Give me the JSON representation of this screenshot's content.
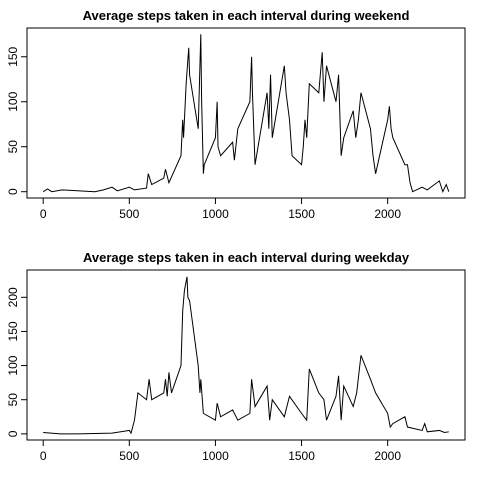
{
  "chart_data": [
    {
      "type": "line",
      "title": "Average steps taken in each interval during weekend",
      "x": [
        0,
        25,
        50,
        110,
        300,
        350,
        400,
        430,
        500,
        530,
        600,
        610,
        630,
        700,
        710,
        730,
        800,
        810,
        815,
        830,
        845,
        850,
        900,
        915,
        920,
        930,
        935,
        1000,
        1010,
        1015,
        1030,
        1100,
        1110,
        1130,
        1200,
        1210,
        1215,
        1230,
        1300,
        1310,
        1320,
        1330,
        1400,
        1410,
        1430,
        1445,
        1500,
        1510,
        1520,
        1530,
        1545,
        1600,
        1620,
        1630,
        1645,
        1700,
        1715,
        1730,
        1745,
        1800,
        1815,
        1830,
        1845,
        1900,
        1915,
        1930,
        2000,
        2010,
        2020,
        2030,
        2100,
        2115,
        2130,
        2145,
        2200,
        2230,
        2300,
        2320,
        2340,
        2355
      ],
      "series": [
        {
          "name": "weekend",
          "color": "#000000",
          "values": [
            0,
            3,
            0,
            2,
            0,
            2,
            5,
            1,
            5,
            2,
            4,
            20,
            8,
            15,
            25,
            10,
            40,
            80,
            60,
            120,
            160,
            130,
            70,
            175,
            100,
            20,
            30,
            60,
            100,
            50,
            40,
            55,
            35,
            70,
            100,
            150,
            110,
            30,
            110,
            70,
            130,
            60,
            140,
            110,
            80,
            40,
            30,
            50,
            80,
            60,
            120,
            110,
            155,
            100,
            140,
            100,
            130,
            40,
            60,
            90,
            60,
            80,
            110,
            70,
            40,
            20,
            80,
            95,
            70,
            60,
            30,
            30,
            10,
            0,
            5,
            2,
            12,
            0,
            8,
            0
          ]
        }
      ],
      "xlim": [
        -94,
        2449
      ],
      "ylim": [
        -7,
        182
      ],
      "xticks": [
        0,
        500,
        1000,
        1500,
        2000
      ],
      "yticks": [
        0,
        50,
        100,
        150
      ]
    },
    {
      "type": "line",
      "title": "Average steps taken in each interval during weekday",
      "x": [
        0,
        100,
        200,
        400,
        500,
        510,
        530,
        550,
        600,
        615,
        630,
        700,
        710,
        720,
        730,
        745,
        800,
        810,
        820,
        835,
        840,
        850,
        900,
        910,
        915,
        930,
        1000,
        1010,
        1030,
        1100,
        1130,
        1200,
        1210,
        1230,
        1300,
        1315,
        1330,
        1400,
        1430,
        1500,
        1530,
        1545,
        1600,
        1630,
        1645,
        1700,
        1715,
        1730,
        1745,
        1800,
        1820,
        1845,
        1900,
        1930,
        2000,
        2015,
        2030,
        2100,
        2115,
        2200,
        2215,
        2230,
        2300,
        2330,
        2355
      ],
      "series": [
        {
          "name": "weekday",
          "color": "#000000",
          "values": [
            2,
            0,
            0,
            1,
            5,
            1,
            20,
            60,
            50,
            80,
            50,
            60,
            80,
            55,
            90,
            60,
            100,
            180,
            210,
            230,
            200,
            195,
            100,
            60,
            80,
            30,
            20,
            45,
            25,
            35,
            20,
            30,
            80,
            40,
            70,
            20,
            50,
            25,
            55,
            30,
            20,
            95,
            60,
            50,
            20,
            55,
            85,
            20,
            70,
            40,
            60,
            115,
            80,
            60,
            30,
            10,
            15,
            25,
            10,
            5,
            15,
            3,
            5,
            2,
            3
          ]
        }
      ],
      "xlim": [
        -94,
        2449
      ],
      "ylim": [
        -9,
        240
      ],
      "xticks": [
        0,
        500,
        1000,
        1500,
        2000
      ],
      "yticks": [
        0,
        50,
        100,
        150,
        200
      ]
    }
  ]
}
